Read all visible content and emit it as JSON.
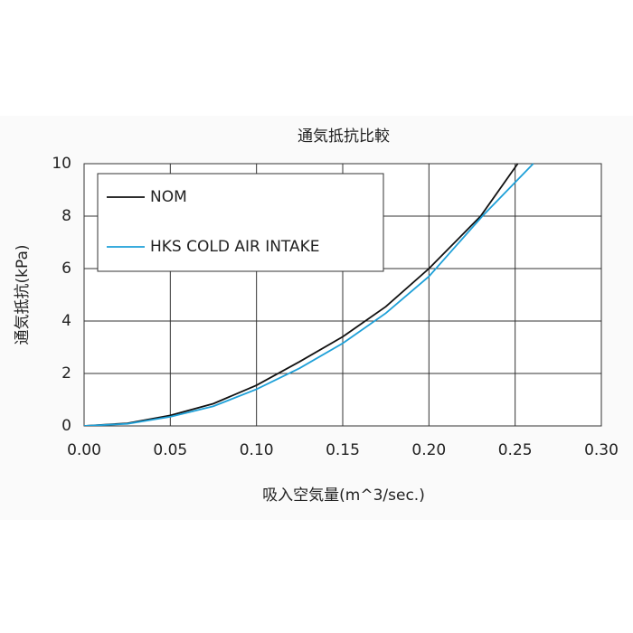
{
  "chart_data": {
    "type": "line",
    "title": "通気抵抗比較",
    "x_label": "吸入空気量(m^3/sec.)",
    "y_label": "通気抵抗(kPa)",
    "xlim": [
      0,
      0.3
    ],
    "ylim": [
      0,
      10
    ],
    "xticks": [
      {
        "value": 0,
        "label": "0.00"
      },
      {
        "value": 0.05,
        "label": "0.05"
      },
      {
        "value": 0.1,
        "label": "0.10"
      },
      {
        "value": 0.15,
        "label": "0.15"
      },
      {
        "value": 0.2,
        "label": "0.20"
      },
      {
        "value": 0.25,
        "label": "0.25"
      },
      {
        "value": 0.3,
        "label": "0.30"
      }
    ],
    "yticks": [
      0,
      2,
      4,
      6,
      8,
      10
    ],
    "grid": true,
    "legend": "upper-left",
    "series": [
      {
        "name": "NOM",
        "color": "#111111",
        "x": [
          0,
          0.025,
          0.05,
          0.075,
          0.1,
          0.125,
          0.15,
          0.175,
          0.2,
          0.23,
          0.2515
        ],
        "values": [
          0,
          0.1,
          0.4,
          0.85,
          1.55,
          2.45,
          3.4,
          4.55,
          6.0,
          8.0,
          10
        ]
      },
      {
        "name": "HKS COLD AIR INTAKE",
        "color": "#1ea0d8",
        "x": [
          0,
          0.025,
          0.05,
          0.075,
          0.1,
          0.125,
          0.15,
          0.175,
          0.2,
          0.231,
          0.2605
        ],
        "values": [
          0,
          0.08,
          0.35,
          0.75,
          1.4,
          2.2,
          3.15,
          4.3,
          5.7,
          8.0,
          10
        ]
      }
    ]
  }
}
